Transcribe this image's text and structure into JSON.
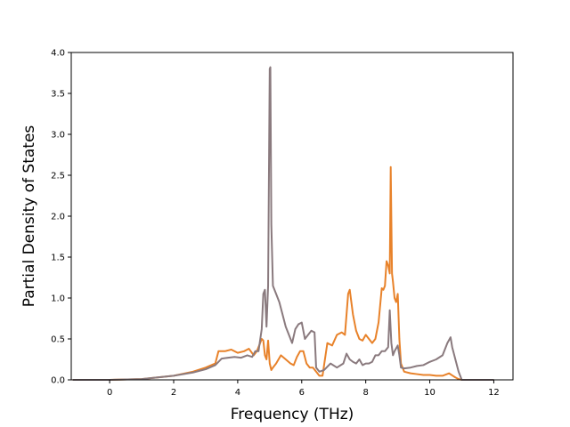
{
  "chart_data": {
    "type": "line",
    "xlabel": "Frequency (THz)",
    "ylabel": "Partial Density of States",
    "xlim": [
      -1.2,
      12.6
    ],
    "ylim": [
      0,
      4.0
    ],
    "xticks": [
      "0",
      "2",
      "4",
      "6",
      "8",
      "10",
      "12"
    ],
    "yticks": [
      "0.0",
      "0.5",
      "1.0",
      "1.5",
      "2.0",
      "2.5",
      "3.0",
      "3.5",
      "4.0"
    ],
    "grid": false,
    "series": [
      {
        "color": "#e8822a",
        "x": [
          -1.15,
          0.0,
          1.0,
          2.0,
          2.6,
          3.0,
          3.3,
          3.4,
          3.6,
          3.8,
          4.0,
          4.2,
          4.35,
          4.5,
          4.6,
          4.7,
          4.75,
          4.8,
          4.85,
          4.9,
          4.95,
          5.0,
          5.05,
          5.1,
          5.2,
          5.35,
          5.5,
          5.65,
          5.75,
          5.85,
          5.95,
          6.05,
          6.15,
          6.25,
          6.35,
          6.45,
          6.55,
          6.65,
          6.8,
          6.95,
          7.1,
          7.25,
          7.35,
          7.45,
          7.5,
          7.6,
          7.7,
          7.8,
          7.9,
          8.0,
          8.1,
          8.2,
          8.3,
          8.4,
          8.5,
          8.55,
          8.6,
          8.65,
          8.7,
          8.75,
          8.78,
          8.82,
          8.85,
          8.9,
          8.95,
          9.0,
          9.05,
          9.1,
          9.2,
          9.4,
          9.6,
          9.8,
          10.0,
          10.2,
          10.4,
          10.6,
          10.8,
          10.9,
          11.0,
          12.0
        ],
        "y": [
          0.0,
          0.0,
          0.01,
          0.05,
          0.1,
          0.15,
          0.2,
          0.35,
          0.35,
          0.37,
          0.33,
          0.35,
          0.38,
          0.3,
          0.35,
          0.45,
          0.5,
          0.48,
          0.3,
          0.25,
          0.48,
          0.2,
          0.12,
          0.15,
          0.2,
          0.3,
          0.25,
          0.2,
          0.18,
          0.28,
          0.35,
          0.35,
          0.2,
          0.15,
          0.15,
          0.1,
          0.05,
          0.05,
          0.45,
          0.42,
          0.55,
          0.58,
          0.55,
          1.05,
          1.1,
          0.8,
          0.6,
          0.5,
          0.48,
          0.55,
          0.5,
          0.45,
          0.5,
          0.7,
          1.12,
          1.1,
          1.15,
          1.45,
          1.4,
          1.3,
          2.6,
          1.3,
          1.2,
          1.0,
          0.95,
          1.05,
          0.5,
          0.2,
          0.1,
          0.08,
          0.07,
          0.06,
          0.06,
          0.05,
          0.05,
          0.08,
          0.03,
          0.01,
          0.0,
          0.0
        ]
      },
      {
        "color": "#8a7a7e",
        "x": [
          -1.15,
          0.0,
          1.0,
          2.0,
          2.6,
          3.0,
          3.3,
          3.5,
          3.7,
          3.9,
          4.1,
          4.3,
          4.45,
          4.55,
          4.65,
          4.75,
          4.8,
          4.85,
          4.9,
          4.95,
          5.0,
          5.02,
          5.05,
          5.1,
          5.2,
          5.3,
          5.4,
          5.5,
          5.6,
          5.7,
          5.8,
          5.9,
          6.0,
          6.1,
          6.2,
          6.3,
          6.4,
          6.45,
          6.55,
          6.7,
          6.9,
          7.1,
          7.3,
          7.4,
          7.5,
          7.6,
          7.7,
          7.8,
          7.9,
          8.0,
          8.1,
          8.2,
          8.3,
          8.4,
          8.5,
          8.6,
          8.7,
          8.75,
          8.8,
          8.85,
          8.9,
          9.0,
          9.05,
          9.1,
          9.2,
          9.4,
          9.6,
          9.8,
          10.0,
          10.2,
          10.4,
          10.55,
          10.65,
          10.7,
          10.8,
          10.9,
          11.0,
          12.0
        ],
        "y": [
          0.0,
          0.0,
          0.01,
          0.05,
          0.09,
          0.13,
          0.18,
          0.26,
          0.27,
          0.28,
          0.27,
          0.3,
          0.28,
          0.35,
          0.35,
          0.62,
          1.05,
          1.1,
          0.65,
          1.15,
          3.8,
          3.82,
          1.9,
          1.15,
          1.05,
          0.95,
          0.8,
          0.65,
          0.55,
          0.45,
          0.62,
          0.68,
          0.7,
          0.5,
          0.55,
          0.6,
          0.58,
          0.15,
          0.1,
          0.12,
          0.2,
          0.15,
          0.2,
          0.32,
          0.25,
          0.22,
          0.2,
          0.25,
          0.18,
          0.2,
          0.2,
          0.22,
          0.3,
          0.3,
          0.35,
          0.35,
          0.4,
          0.85,
          0.45,
          0.3,
          0.35,
          0.42,
          0.3,
          0.15,
          0.14,
          0.15,
          0.17,
          0.18,
          0.22,
          0.25,
          0.3,
          0.45,
          0.52,
          0.4,
          0.25,
          0.1,
          0.0,
          0.0
        ]
      }
    ]
  }
}
